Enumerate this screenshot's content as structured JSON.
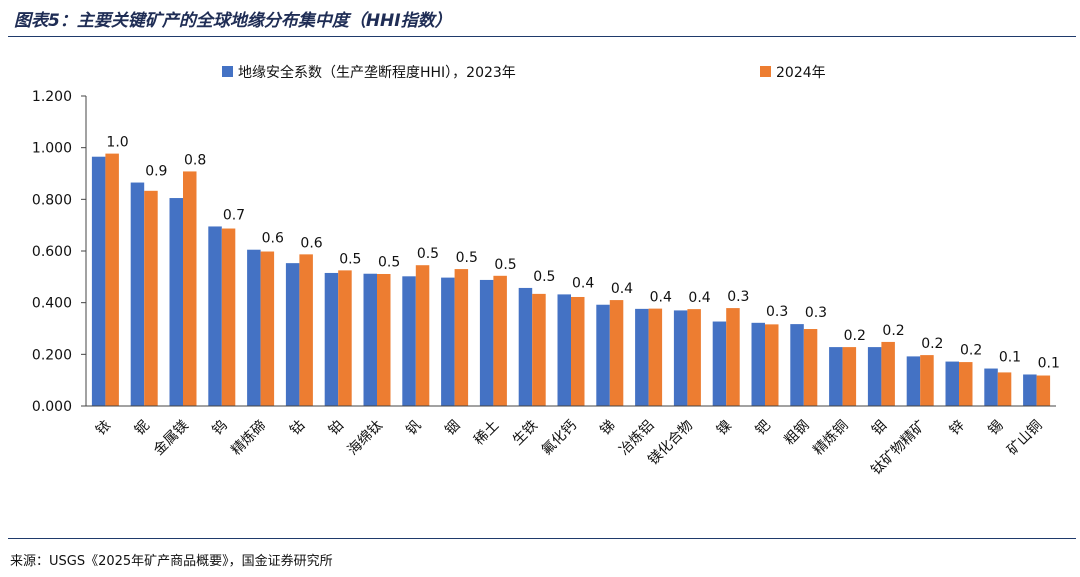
{
  "header": {
    "title": "图表5：主要关键矿产的全球地缘分布集中度（HHI指数）"
  },
  "footer": {
    "source": "来源：USGS《2025年矿产商品概要》，国金证券研究所"
  },
  "colors": {
    "series_2023": "#4472c4",
    "series_2024": "#ed7d31",
    "axis": "#444444",
    "rule": "#1f3a6b"
  },
  "chart_data": {
    "type": "bar",
    "title": "",
    "xlabel": "",
    "ylabel": "",
    "ylim": [
      0,
      1.2
    ],
    "yticks": [
      "0.000",
      "0.200",
      "0.400",
      "0.600",
      "0.800",
      "1.000",
      "1.200"
    ],
    "legend_position": "top-center",
    "categories": [
      "铱",
      "铌",
      "金属镁",
      "钨",
      "精炼碲",
      "钴",
      "铂",
      "海绵钛",
      "钒",
      "铟",
      "稀土",
      "生铁",
      "氟化钙",
      "锑",
      "冶炼铝",
      "镁化合物",
      "镍",
      "钯",
      "粗钢",
      "精炼铜",
      "钼",
      "钛矿物精矿",
      "锌",
      "锡",
      "矿山铜"
    ],
    "series": [
      {
        "name": "地缘安全系数（生产垄断程度HHI），2023年",
        "values": [
          0.965,
          0.865,
          0.805,
          0.695,
          0.605,
          0.553,
          0.515,
          0.512,
          0.502,
          0.497,
          0.488,
          0.457,
          0.432,
          0.392,
          0.376,
          0.37,
          0.327,
          0.322,
          0.317,
          0.228,
          0.228,
          0.192,
          0.172,
          0.145,
          0.122
        ]
      },
      {
        "name": "2024年",
        "values": [
          0.977,
          0.833,
          0.908,
          0.687,
          0.598,
          0.587,
          0.525,
          0.511,
          0.545,
          0.53,
          0.504,
          0.434,
          0.422,
          0.41,
          0.377,
          0.375,
          0.379,
          0.316,
          0.298,
          0.228,
          0.248,
          0.197,
          0.17,
          0.13,
          0.118
        ]
      }
    ],
    "data_labels": [
      "1.0",
      "0.9",
      "0.8",
      "0.7",
      "0.6",
      "0.6",
      "0.5",
      "0.5",
      "0.5",
      "0.5",
      "0.5",
      "0.5",
      "0.4",
      "0.4",
      "0.4",
      "0.4",
      "0.3",
      "0.3",
      "0.3",
      "0.2",
      "0.2",
      "0.2",
      "0.2",
      "0.1",
      "0.1"
    ]
  }
}
